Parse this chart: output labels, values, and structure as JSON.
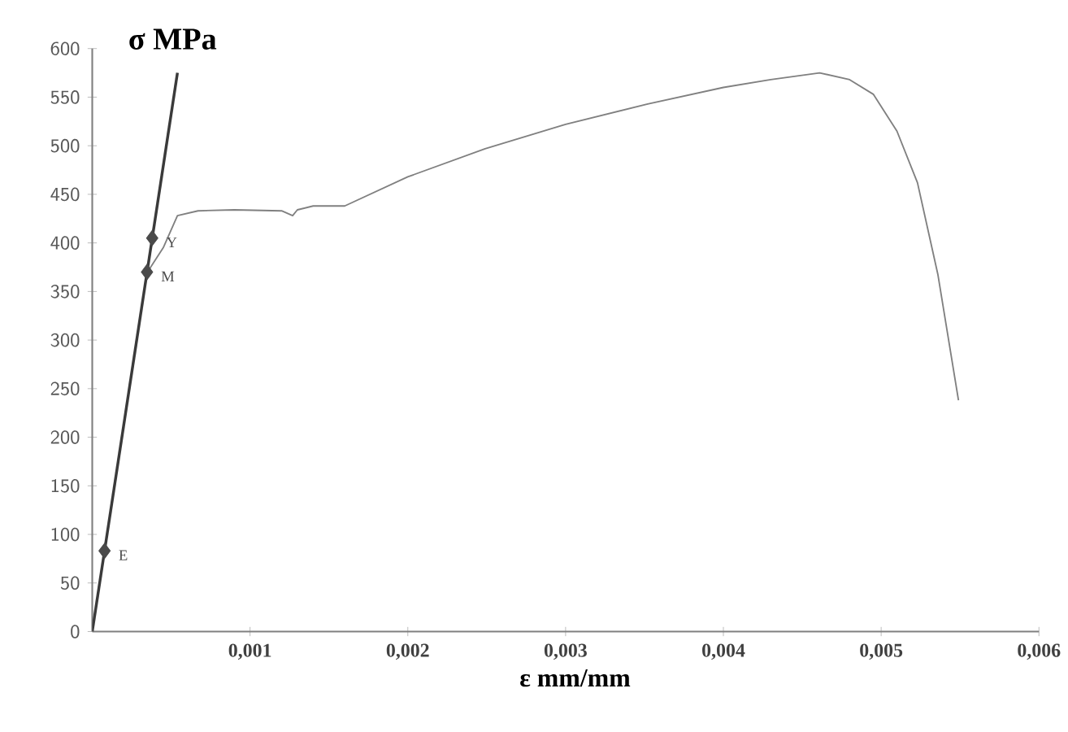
{
  "chart_data": {
    "type": "line",
    "xlabel": "ε mm/mm",
    "ylabel": "σ MPa",
    "xlim": [
      0,
      0.006
    ],
    "ylim": [
      0,
      600
    ],
    "xticks": [
      {
        "value": 0.001,
        "label": "0,001"
      },
      {
        "value": 0.002,
        "label": "0,002"
      },
      {
        "value": 0.003,
        "label": "0,003"
      },
      {
        "value": 0.004,
        "label": "0,004"
      },
      {
        "value": 0.005,
        "label": "0,005"
      },
      {
        "value": 0.006,
        "label": "0,006"
      }
    ],
    "yticks": [
      0,
      50,
      100,
      150,
      200,
      250,
      300,
      350,
      400,
      450,
      500,
      550,
      600
    ],
    "grid": false,
    "series": [
      {
        "type": "line",
        "color": "#3a3a3a",
        "x": [
          0,
          0.00054
        ],
        "values": [
          0,
          575
        ]
      },
      {
        "type": "line",
        "color": "#808080",
        "x": [
          0.00035,
          0.00045,
          0.00054,
          0.00067,
          0.0009,
          0.0012,
          0.00127,
          0.0013,
          0.0014,
          0.0016,
          0.002,
          0.00249,
          0.003,
          0.00352,
          0.004,
          0.0043,
          0.00461,
          0.0048,
          0.00495,
          0.0051,
          0.00523,
          0.00536,
          0.00549
        ],
        "values": [
          370,
          395,
          428,
          433,
          434,
          433,
          428,
          434,
          438,
          438,
          468,
          497,
          522,
          543,
          560,
          568,
          575,
          568,
          553,
          515,
          462,
          367,
          238
        ]
      },
      {
        "type": "scatter",
        "marker": "diamond",
        "color": "#4a4a4a",
        "x": [
          7.8e-05,
          0.000347,
          0.00038
        ],
        "values": [
          83,
          370,
          405
        ]
      }
    ],
    "annotations": [
      {
        "text": "E",
        "x": 7.8e-05,
        "y": 83
      },
      {
        "text": "M",
        "x": 0.000347,
        "y": 370
      },
      {
        "text": "Y",
        "x": 0.00038,
        "y": 405
      }
    ]
  }
}
